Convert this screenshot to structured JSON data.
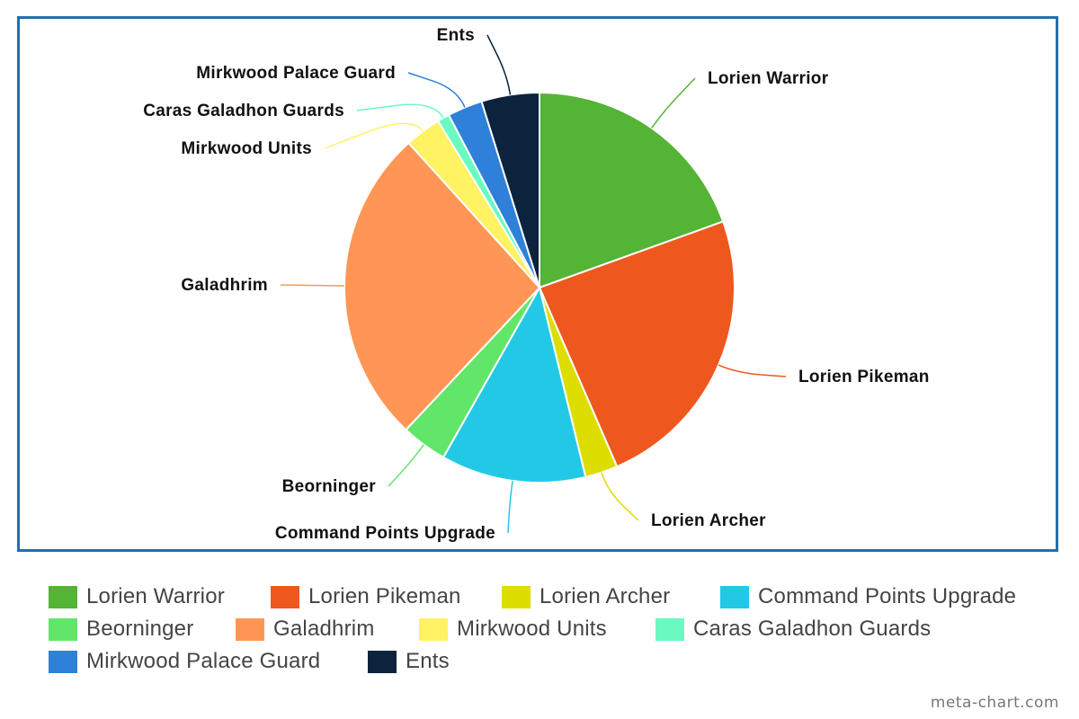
{
  "chart_data": {
    "type": "pie",
    "start_angle_deg": 0,
    "direction": "clockwise",
    "slices": [
      {
        "label": "Lorien Warrior",
        "value": 19.5,
        "color": "#54b435"
      },
      {
        "label": "Lorien Pikeman",
        "value": 24.0,
        "color": "#ee581e"
      },
      {
        "label": "Lorien Archer",
        "value": 2.7,
        "color": "#dddd00"
      },
      {
        "label": "Command Points Upgrade",
        "value": 12.0,
        "color": "#22c9e6"
      },
      {
        "label": "Beorninger",
        "value": 3.8,
        "color": "#62e66a"
      },
      {
        "label": "Galadhrim",
        "value": 26.3,
        "color": "#ff9655"
      },
      {
        "label": "Mirkwood Units",
        "value": 3.0,
        "color": "#fff263"
      },
      {
        "label": "Caras Galadhon Guards",
        "value": 1.0,
        "color": "#6bf9c2"
      },
      {
        "label": "Mirkwood Palace Guard",
        "value": 2.9,
        "color": "#2f80d8"
      },
      {
        "label": "Ents",
        "value": 4.8,
        "color": "#0b233d"
      }
    ],
    "legend_placement": "bottom"
  },
  "watermark": "meta-chart.com"
}
